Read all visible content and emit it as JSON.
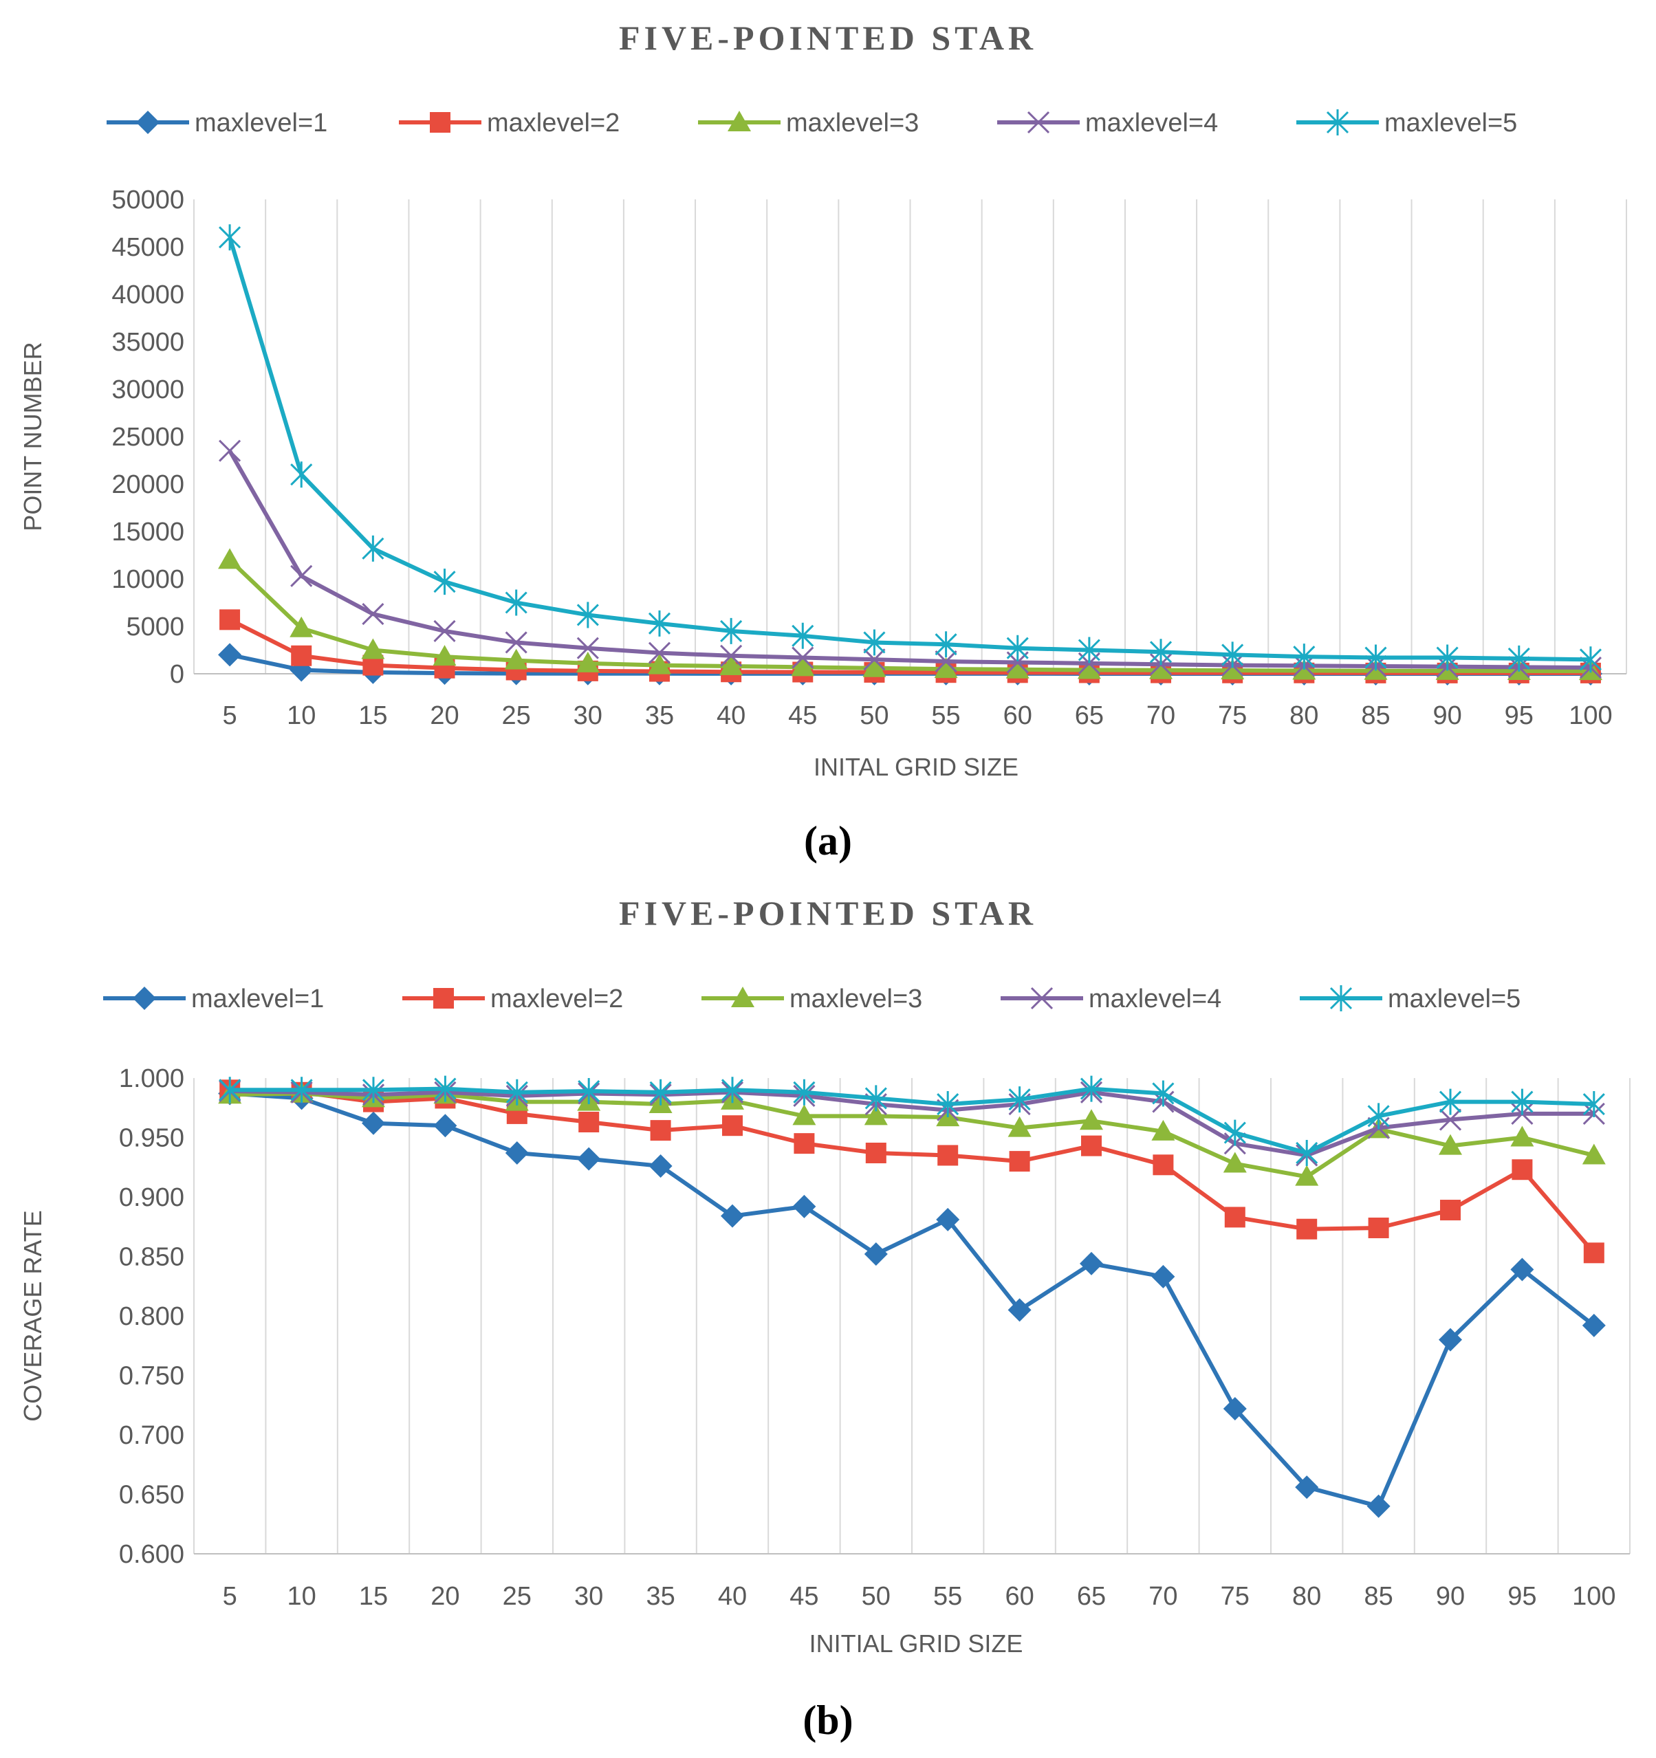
{
  "chart_data": [
    {
      "type": "line",
      "title": "FIVE-POINTED STAR",
      "caption": "(a)",
      "xlabel": "INITAL GRID SIZE",
      "ylabel": "POINT NUMBER",
      "categories": [
        "5",
        "10",
        "15",
        "20",
        "25",
        "30",
        "35",
        "40",
        "45",
        "50",
        "55",
        "60",
        "65",
        "70",
        "75",
        "80",
        "85",
        "90",
        "95",
        "100"
      ],
      "ylim": [
        0,
        50000
      ],
      "yticks": [
        0,
        5000,
        10000,
        15000,
        20000,
        25000,
        30000,
        35000,
        40000,
        45000,
        50000
      ],
      "ytick_labels": [
        "0",
        "5000",
        "10000",
        "15000",
        "20000",
        "25000",
        "30000",
        "35000",
        "40000",
        "45000",
        "50000"
      ],
      "grid": "vertical",
      "legend_position": "top",
      "series": [
        {
          "name": "maxlevel=1",
          "color": "#2E75B6",
          "marker": "diamond",
          "values": [
            2000,
            400,
            150,
            60,
            30,
            20,
            15,
            10,
            8,
            6,
            5,
            5,
            4,
            4,
            3,
            3,
            3,
            3,
            3,
            3
          ]
        },
        {
          "name": "maxlevel=2",
          "color": "#E84C3D",
          "marker": "square",
          "values": [
            5700,
            1900,
            900,
            600,
            400,
            300,
            250,
            200,
            180,
            150,
            130,
            120,
            110,
            100,
            90,
            90,
            80,
            80,
            80,
            80
          ]
        },
        {
          "name": "maxlevel=3",
          "color": "#8DB83A",
          "marker": "triangle",
          "values": [
            12000,
            4800,
            2500,
            1800,
            1400,
            1100,
            900,
            800,
            700,
            600,
            500,
            450,
            400,
            380,
            350,
            330,
            310,
            300,
            290,
            280
          ]
        },
        {
          "name": "maxlevel=4",
          "color": "#8064A2",
          "marker": "x",
          "values": [
            23500,
            10300,
            6300,
            4500,
            3300,
            2700,
            2200,
            1900,
            1700,
            1500,
            1300,
            1200,
            1100,
            1000,
            900,
            850,
            800,
            750,
            700,
            650
          ]
        },
        {
          "name": "maxlevel=5",
          "color": "#1BAAC4",
          "marker": "asterisk",
          "values": [
            46000,
            21000,
            13200,
            9700,
            7500,
            6200,
            5300,
            4500,
            4000,
            3300,
            3100,
            2700,
            2500,
            2300,
            2000,
            1800,
            1700,
            1700,
            1600,
            1500
          ]
        }
      ]
    },
    {
      "type": "line",
      "title": "FIVE-POINTED STAR",
      "caption": "(b)",
      "xlabel": "INITIAL GRID SIZE",
      "ylabel": "COVERAGE RATE",
      "categories": [
        "5",
        "10",
        "15",
        "20",
        "25",
        "30",
        "35",
        "40",
        "45",
        "50",
        "55",
        "60",
        "65",
        "70",
        "75",
        "80",
        "85",
        "90",
        "95",
        "100"
      ],
      "ylim": [
        0.6,
        1.0
      ],
      "yticks": [
        0.6,
        0.65,
        0.7,
        0.75,
        0.8,
        0.85,
        0.9,
        0.95,
        1.0
      ],
      "ytick_labels": [
        "0.600",
        "0.650",
        "0.700",
        "0.750",
        "0.800",
        "0.850",
        "0.900",
        "0.950",
        "1.000"
      ],
      "grid": "vertical",
      "legend_position": "top",
      "series": [
        {
          "name": "maxlevel=1",
          "color": "#2E75B6",
          "marker": "diamond",
          "values": [
            0.987,
            0.983,
            0.962,
            0.96,
            0.937,
            0.932,
            0.926,
            0.884,
            0.892,
            0.852,
            0.881,
            0.805,
            0.844,
            0.833,
            0.722,
            0.656,
            0.64,
            0.78,
            0.839,
            0.792
          ]
        },
        {
          "name": "maxlevel=2",
          "color": "#E84C3D",
          "marker": "square",
          "values": [
            0.99,
            0.988,
            0.98,
            0.983,
            0.97,
            0.963,
            0.956,
            0.96,
            0.945,
            0.937,
            0.935,
            0.93,
            0.943,
            0.927,
            0.883,
            0.873,
            0.874,
            0.889,
            0.923,
            0.853
          ]
        },
        {
          "name": "maxlevel=3",
          "color": "#8DB83A",
          "marker": "triangle",
          "values": [
            0.986,
            0.987,
            0.983,
            0.986,
            0.98,
            0.98,
            0.978,
            0.981,
            0.968,
            0.968,
            0.967,
            0.958,
            0.964,
            0.955,
            0.928,
            0.917,
            0.957,
            0.943,
            0.95,
            0.935
          ]
        },
        {
          "name": "maxlevel=4",
          "color": "#8064A2",
          "marker": "x",
          "values": [
            0.989,
            0.988,
            0.986,
            0.988,
            0.985,
            0.987,
            0.986,
            0.988,
            0.985,
            0.978,
            0.973,
            0.978,
            0.988,
            0.98,
            0.945,
            0.935,
            0.958,
            0.965,
            0.97,
            0.97
          ]
        },
        {
          "name": "maxlevel=5",
          "color": "#1BAAC4",
          "marker": "asterisk",
          "values": [
            0.99,
            0.99,
            0.99,
            0.991,
            0.988,
            0.989,
            0.988,
            0.99,
            0.988,
            0.983,
            0.978,
            0.982,
            0.991,
            0.987,
            0.954,
            0.937,
            0.968,
            0.98,
            0.98,
            0.978
          ]
        }
      ]
    }
  ]
}
